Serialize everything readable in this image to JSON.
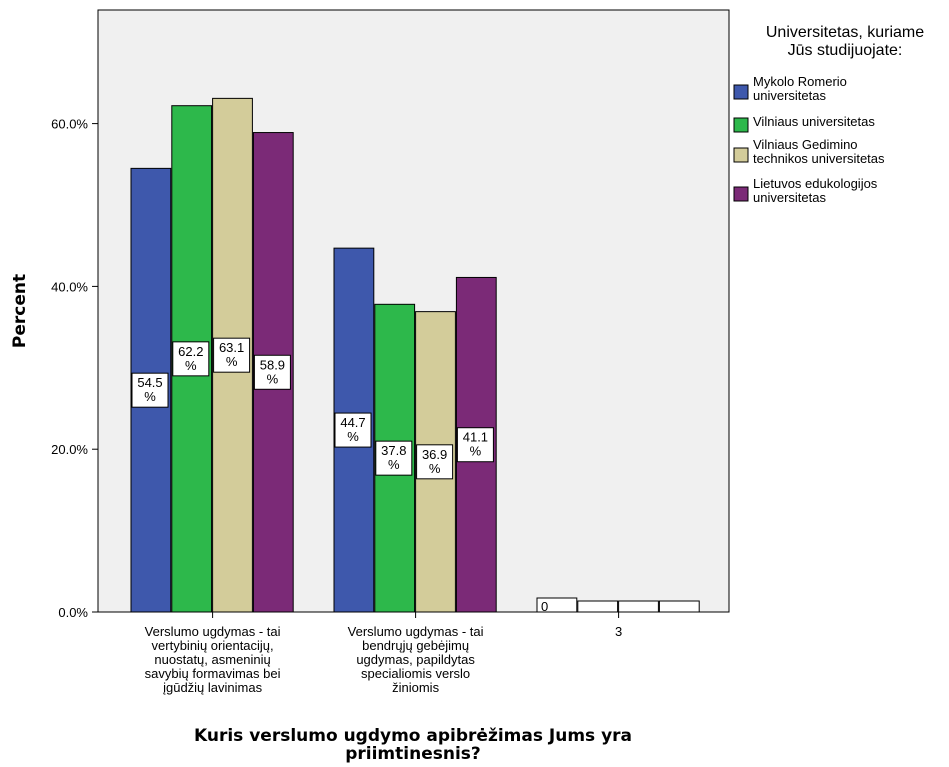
{
  "chart_data": {
    "type": "bar",
    "ylabel": "Percent",
    "xlabel": "Kuris verslumo ugdymo apibrėžimas Jums yra priimtinesnis?",
    "ylim": [
      0,
      72
    ],
    "yticks": [
      "0.0%",
      "20.0%",
      "40.0%",
      "60.0%"
    ],
    "ytick_values": [
      0,
      20,
      40,
      60
    ],
    "grid": false,
    "legend_position": "right",
    "legend_title": "Universitetas, kuriame Jūs studijuojate:",
    "categories": [
      "Verslumo ugdymas - tai vertybinių orientacijų, nuostatų, asmeninių savybių formavimas bei įgūdžių lavinimas",
      "Verslumo ugdymas - tai bendrųjų gebėjimų ugdymas, papildytas specialiomis verslo žiniomis",
      "3"
    ],
    "category_lines": [
      [
        "Verslumo ugdymas - tai",
        "vertybinių orientacijų,",
        "nuostatų, asmeninių",
        "savybių formavimas bei",
        "įgūdžių lavinimas"
      ],
      [
        "Verslumo ugdymas - tai",
        "bendrųjų gebėjimų",
        "ugdymas, papildytas",
        "specialiomis verslo",
        "žiniomis"
      ],
      [
        "3"
      ]
    ],
    "series": [
      {
        "name": "Mykolo Romerio universitetas",
        "legend_lines": [
          "Mykolo Romerio",
          "universitetas"
        ],
        "color": "#3e58ac",
        "values": [
          54.5,
          44.7,
          0
        ],
        "labels": [
          "54.5 %",
          "44.7 %",
          "0"
        ]
      },
      {
        "name": "Vilniaus universitetas",
        "legend_lines": [
          "Vilniaus universitetas"
        ],
        "color": "#2db84b",
        "values": [
          62.2,
          37.8,
          0
        ],
        "labels": [
          "62.2 %",
          "37.8 %",
          ""
        ]
      },
      {
        "name": "Vilniaus Gedimino technikos universitetas",
        "legend_lines": [
          "Vilniaus Gedimino",
          "technikos universitetas"
        ],
        "color": "#d3cc9a",
        "values": [
          63.1,
          36.9,
          0
        ],
        "labels": [
          "63.1 %",
          "36.9 %",
          ""
        ]
      },
      {
        "name": "Lietuvos edukologijos universitetas",
        "legend_lines": [
          "Lietuvos edukologijos",
          "universitetas"
        ],
        "color": "#7b2a77",
        "values": [
          58.9,
          41.1,
          0
        ],
        "labels": [
          "58.9 %",
          "41.1 %",
          ""
        ]
      }
    ]
  }
}
